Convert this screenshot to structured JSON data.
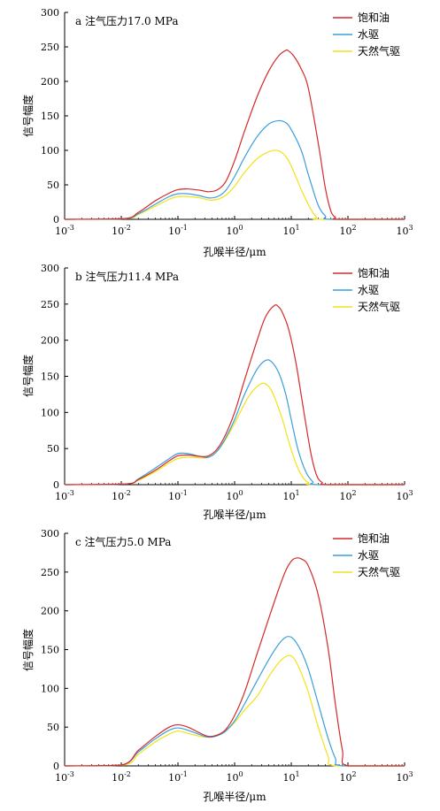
{
  "page": {
    "x_unit_note": "x values are pore radius in μm (log axis)"
  },
  "legend": {
    "items": [
      {
        "label": "饱和油",
        "color": "#d42a2a"
      },
      {
        "label": "水驱",
        "color": "#3a9fdc"
      },
      {
        "label": "天然气驱",
        "color": "#f2e21a"
      }
    ]
  },
  "chart_data": [
    {
      "type": "line",
      "title": "a 注气压力17.0 MPa",
      "xlabel": "孔喉半径/μm",
      "ylabel": "信号幅度",
      "xscale": "log",
      "xlim": [
        0.001,
        1000
      ],
      "ylim": [
        0,
        300
      ],
      "yticks": [
        0,
        50,
        100,
        150,
        200,
        250,
        300
      ],
      "xtick_exponents": [
        "-3",
        "-2",
        "-1",
        "0",
        "1",
        "2",
        "3"
      ],
      "legend_position": "top-right",
      "series": [
        {
          "name": "饱和油",
          "color": "#d42a2a",
          "x": [
            0.001,
            0.011,
            0.02,
            0.04,
            0.07,
            0.1,
            0.15,
            0.25,
            0.35,
            0.5,
            0.7,
            1,
            1.5,
            2.5,
            4,
            6,
            8,
            9,
            11,
            15,
            20,
            30,
            40,
            50,
            60,
            70,
            1000
          ],
          "y": [
            0,
            1,
            10,
            27,
            38,
            43,
            44,
            42,
            40,
            43,
            55,
            85,
            128,
            178,
            215,
            237,
            245,
            244,
            237,
            218,
            190,
            110,
            45,
            12,
            3,
            0,
            0
          ]
        },
        {
          "name": "水驱",
          "color": "#3a9fdc",
          "x": [
            0.001,
            0.011,
            0.02,
            0.04,
            0.07,
            0.1,
            0.15,
            0.25,
            0.35,
            0.5,
            0.7,
            1,
            1.5,
            2.5,
            4,
            6,
            8,
            10,
            15,
            20,
            30,
            40,
            50,
            1000
          ],
          "y": [
            0,
            1,
            8,
            22,
            33,
            37,
            37,
            34,
            31,
            33,
            42,
            62,
            90,
            120,
            138,
            143,
            140,
            130,
            100,
            65,
            20,
            5,
            0,
            0
          ]
        },
        {
          "name": "天然气驱",
          "color": "#f2e21a",
          "x": [
            0.001,
            0.012,
            0.02,
            0.04,
            0.07,
            0.1,
            0.15,
            0.25,
            0.35,
            0.5,
            0.7,
            1,
            1.5,
            2.5,
            4,
            5.5,
            7,
            9,
            12,
            16,
            22,
            28,
            32,
            1000
          ],
          "y": [
            0,
            1,
            7,
            19,
            29,
            33,
            33,
            31,
            28,
            29,
            35,
            48,
            68,
            88,
            98,
            100,
            96,
            85,
            62,
            38,
            15,
            3,
            0,
            0
          ]
        }
      ]
    },
    {
      "type": "line",
      "title": "b 注气压力11.4 MPa",
      "xlabel": "孔喉半径/μm",
      "ylabel": "信号幅度",
      "xscale": "log",
      "xlim": [
        0.001,
        1000
      ],
      "ylim": [
        0,
        300
      ],
      "yticks": [
        0,
        50,
        100,
        150,
        200,
        250,
        300
      ],
      "xtick_exponents": [
        "-3",
        "-2",
        "-1",
        "0",
        "1",
        "2",
        "3"
      ],
      "legend_position": "top-right",
      "series": [
        {
          "name": "饱和油",
          "color": "#d42a2a",
          "x": [
            0.001,
            0.012,
            0.02,
            0.04,
            0.07,
            0.1,
            0.15,
            0.25,
            0.35,
            0.5,
            0.7,
            1,
            1.5,
            2.5,
            3.5,
            5,
            6,
            7,
            9,
            12,
            16,
            22,
            28,
            35,
            45,
            1000
          ],
          "y": [
            0,
            1,
            7,
            20,
            33,
            40,
            41,
            39,
            40,
            50,
            70,
            100,
            145,
            200,
            232,
            248,
            246,
            238,
            215,
            170,
            110,
            45,
            13,
            3,
            0,
            0
          ]
        },
        {
          "name": "水驱",
          "color": "#3a9fdc",
          "x": [
            0.001,
            0.012,
            0.02,
            0.04,
            0.07,
            0.1,
            0.15,
            0.25,
            0.35,
            0.5,
            0.7,
            1,
            1.5,
            2.5,
            3.5,
            4.5,
            6,
            8,
            10,
            13,
            18,
            24,
            30,
            1000
          ],
          "y": [
            0,
            1,
            8,
            23,
            36,
            43,
            43,
            39,
            38,
            47,
            65,
            90,
            125,
            160,
            172,
            170,
            155,
            125,
            90,
            50,
            18,
            4,
            0,
            0
          ]
        },
        {
          "name": "天然气驱",
          "color": "#f2e21a",
          "x": [
            0.001,
            0.012,
            0.02,
            0.04,
            0.07,
            0.1,
            0.15,
            0.25,
            0.35,
            0.5,
            0.7,
            1,
            1.5,
            2,
            3,
            4,
            5,
            7,
            9,
            12,
            16,
            20,
            26,
            1000
          ],
          "y": [
            0,
            1,
            6,
            18,
            30,
            36,
            38,
            37,
            38,
            47,
            63,
            85,
            112,
            128,
            140,
            136,
            122,
            90,
            60,
            30,
            10,
            3,
            0,
            0
          ]
        }
      ]
    },
    {
      "type": "line",
      "title": "c 注气压力5.0 MPa",
      "xlabel": "孔喉半径/μm",
      "ylabel": "信号幅度",
      "xscale": "log",
      "xlim": [
        0.001,
        1000
      ],
      "ylim": [
        0,
        300
      ],
      "yticks": [
        0,
        50,
        100,
        150,
        200,
        250,
        300
      ],
      "xtick_exponents": [
        "-3",
        "-2",
        "-1",
        "0",
        "1",
        "2",
        "3"
      ],
      "legend_position": "top-right",
      "series": [
        {
          "name": "饱和油",
          "color": "#d42a2a",
          "x": [
            0.001,
            0.01,
            0.02,
            0.04,
            0.07,
            0.1,
            0.15,
            0.25,
            0.35,
            0.5,
            0.7,
            1,
            1.5,
            2.5,
            4,
            6,
            8,
            10,
            12,
            15,
            20,
            30,
            45,
            60,
            80,
            100,
            1000
          ],
          "y": [
            0,
            1,
            20,
            38,
            50,
            53,
            50,
            42,
            38,
            40,
            47,
            65,
            95,
            145,
            190,
            228,
            252,
            264,
            268,
            267,
            258,
            220,
            150,
            80,
            20,
            0,
            0
          ]
        },
        {
          "name": "水驱",
          "color": "#3a9fdc",
          "x": [
            0.001,
            0.01,
            0.02,
            0.04,
            0.07,
            0.1,
            0.15,
            0.25,
            0.35,
            0.5,
            0.7,
            1,
            1.5,
            2.5,
            4,
            6,
            8,
            10,
            12,
            15,
            20,
            30,
            45,
            60,
            80,
            1000
          ],
          "y": [
            0,
            1,
            18,
            35,
            46,
            49,
            46,
            40,
            37,
            39,
            45,
            58,
            80,
            110,
            137,
            157,
            166,
            166,
            160,
            148,
            125,
            80,
            35,
            10,
            0,
            0
          ]
        },
        {
          "name": "天然气驱",
          "color": "#f2e21a",
          "x": [
            0.001,
            0.011,
            0.02,
            0.04,
            0.07,
            0.1,
            0.15,
            0.25,
            0.35,
            0.5,
            0.7,
            1,
            1.5,
            2.5,
            4,
            6,
            8,
            10,
            12,
            15,
            20,
            30,
            45,
            60,
            1000
          ],
          "y": [
            0,
            1,
            15,
            31,
            41,
            45,
            42,
            38,
            37,
            40,
            46,
            56,
            72,
            90,
            115,
            133,
            141,
            142,
            135,
            120,
            95,
            50,
            12,
            0,
            0
          ]
        }
      ]
    }
  ]
}
